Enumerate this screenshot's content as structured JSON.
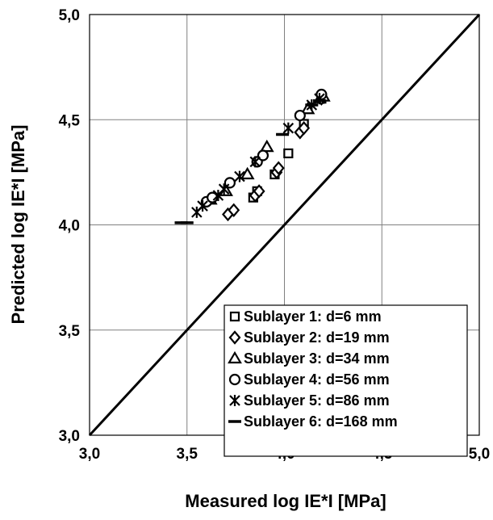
{
  "chart_data": {
    "type": "scatter",
    "xlabel": "Measured log IE*I [MPa]",
    "ylabel": "Predicted log IE*I [MPa]",
    "xlim": [
      3.0,
      5.0
    ],
    "ylim": [
      3.0,
      5.0
    ],
    "x_ticks": [
      "3,0",
      "3,5",
      "4,0",
      "4,5",
      "5,0"
    ],
    "y_ticks": [
      "3,0",
      "3,5",
      "4,0",
      "4,5",
      "5,0"
    ],
    "grid": true,
    "legend_position": "bottom-right",
    "reference_line": {
      "type": "line_of_equality",
      "points": [
        [
          3.0,
          3.0
        ],
        [
          5.0,
          5.0
        ]
      ]
    },
    "series": [
      {
        "name": "Sublayer 1: d=6 mm",
        "marker": "square",
        "points": [
          [
            3.84,
            4.13
          ],
          [
            3.86,
            4.16
          ],
          [
            3.95,
            4.24
          ],
          [
            4.02,
            4.34
          ],
          [
            4.1,
            4.48
          ],
          [
            4.19,
            4.6
          ]
        ]
      },
      {
        "name": "Sublayer 2: d=19 mm",
        "marker": "diamond",
        "points": [
          [
            3.71,
            4.05
          ],
          [
            3.74,
            4.07
          ],
          [
            3.85,
            4.14
          ],
          [
            3.87,
            4.16
          ],
          [
            3.96,
            4.25
          ],
          [
            3.97,
            4.27
          ],
          [
            4.08,
            4.44
          ],
          [
            4.1,
            4.46
          ],
          [
            4.19,
            4.6
          ]
        ]
      },
      {
        "name": "Sublayer 3: d=34 mm",
        "marker": "triangle",
        "points": [
          [
            3.62,
            4.12
          ],
          [
            3.7,
            4.16
          ],
          [
            3.81,
            4.24
          ],
          [
            3.91,
            4.37
          ],
          [
            4.12,
            4.55
          ],
          [
            4.2,
            4.61
          ]
        ]
      },
      {
        "name": "Sublayer 4: d=56 mm",
        "marker": "circle",
        "points": [
          [
            3.6,
            4.11
          ],
          [
            3.63,
            4.13
          ],
          [
            3.72,
            4.2
          ],
          [
            3.86,
            4.3
          ],
          [
            3.89,
            4.33
          ],
          [
            4.08,
            4.52
          ],
          [
            4.19,
            4.62
          ]
        ]
      },
      {
        "name": "Sublayer 5: d=86 mm",
        "marker": "asterisk",
        "points": [
          [
            3.55,
            4.06
          ],
          [
            3.58,
            4.09
          ],
          [
            3.66,
            4.14
          ],
          [
            3.69,
            4.17
          ],
          [
            3.77,
            4.23
          ],
          [
            3.85,
            4.3
          ],
          [
            4.02,
            4.46
          ],
          [
            4.14,
            4.57
          ],
          [
            4.18,
            4.6
          ]
        ]
      },
      {
        "name": "Sublayer 6: d=168 mm",
        "marker": "dash",
        "points": [
          [
            3.47,
            4.01
          ],
          [
            3.5,
            4.01
          ],
          [
            3.99,
            4.43
          ],
          [
            4.14,
            4.57
          ],
          [
            4.18,
            4.59
          ]
        ]
      }
    ]
  }
}
